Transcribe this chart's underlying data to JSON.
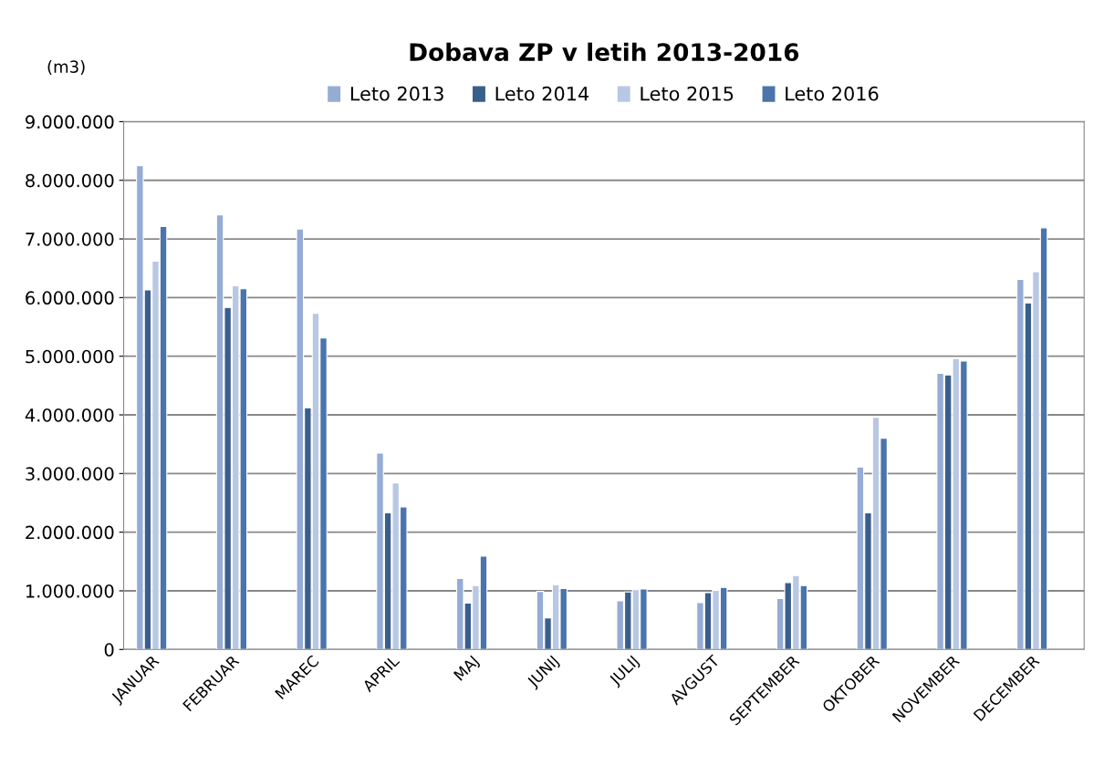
{
  "chart_data": {
    "type": "bar",
    "title": "Dobava ZP v letih 2013-2016",
    "ylabel": "(m3)",
    "categories": [
      "JANUAR",
      "FEBRUAR",
      "MAREC",
      "APRIL",
      "MAJ",
      "JUNIJ",
      "JULIJ",
      "AVGUST",
      "SEPTEMBER",
      "OKTOBER",
      "NOVEMBER",
      "DECEMBER"
    ],
    "series": [
      {
        "name": "Leto 2013",
        "color": "#95acd4",
        "values": [
          8250000,
          7410000,
          7170000,
          3350000,
          1210000,
          990000,
          830000,
          800000,
          870000,
          3110000,
          4710000,
          6310000
        ]
      },
      {
        "name": "Leto 2014",
        "color": "#3a5e8c",
        "values": [
          6130000,
          5830000,
          4120000,
          2330000,
          790000,
          540000,
          980000,
          970000,
          1140000,
          2330000,
          4680000,
          5910000
        ]
      },
      {
        "name": "Leto 2015",
        "color": "#b9c8e2",
        "values": [
          6620000,
          6200000,
          5730000,
          2840000,
          1090000,
          1100000,
          1020000,
          1010000,
          1260000,
          3960000,
          4960000,
          6440000
        ]
      },
      {
        "name": "Leto 2016",
        "color": "#4a74ab",
        "values": [
          7210000,
          6150000,
          5310000,
          2430000,
          1590000,
          1040000,
          1030000,
          1060000,
          1090000,
          3600000,
          4920000,
          7190000
        ]
      }
    ],
    "ylim": [
      0,
      9000000
    ],
    "yticks": [
      {
        "value": 0,
        "label": "0"
      },
      {
        "value": 1000000,
        "label": "1.000.000"
      },
      {
        "value": 2000000,
        "label": "2.000.000"
      },
      {
        "value": 3000000,
        "label": "3.000.000"
      },
      {
        "value": 4000000,
        "label": "4.000.000"
      },
      {
        "value": 5000000,
        "label": "5.000.000"
      },
      {
        "value": 6000000,
        "label": "6.000.000"
      },
      {
        "value": 7000000,
        "label": "7.000.000"
      },
      {
        "value": 8000000,
        "label": "8.000.000"
      },
      {
        "value": 9000000,
        "label": "9.000.000"
      }
    ],
    "grid": "y",
    "legend": "top"
  }
}
